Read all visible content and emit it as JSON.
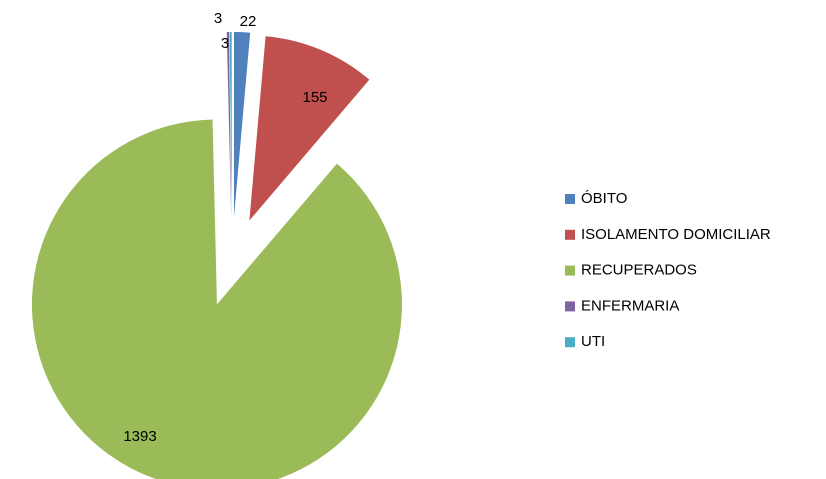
{
  "chart_data": {
    "type": "pie",
    "categories": [
      "ÓBITO",
      "ISOLAMENTO DOMICILIAR",
      "RECUPERADOS",
      "ENFERMARIA",
      "UTI"
    ],
    "values": [
      22,
      155,
      1393,
      3,
      3
    ],
    "colors": [
      "#4f81bd",
      "#c0504d",
      "#9bbb59",
      "#8064a2",
      "#4bacc6"
    ],
    "exploded": true,
    "legend": "right"
  }
}
